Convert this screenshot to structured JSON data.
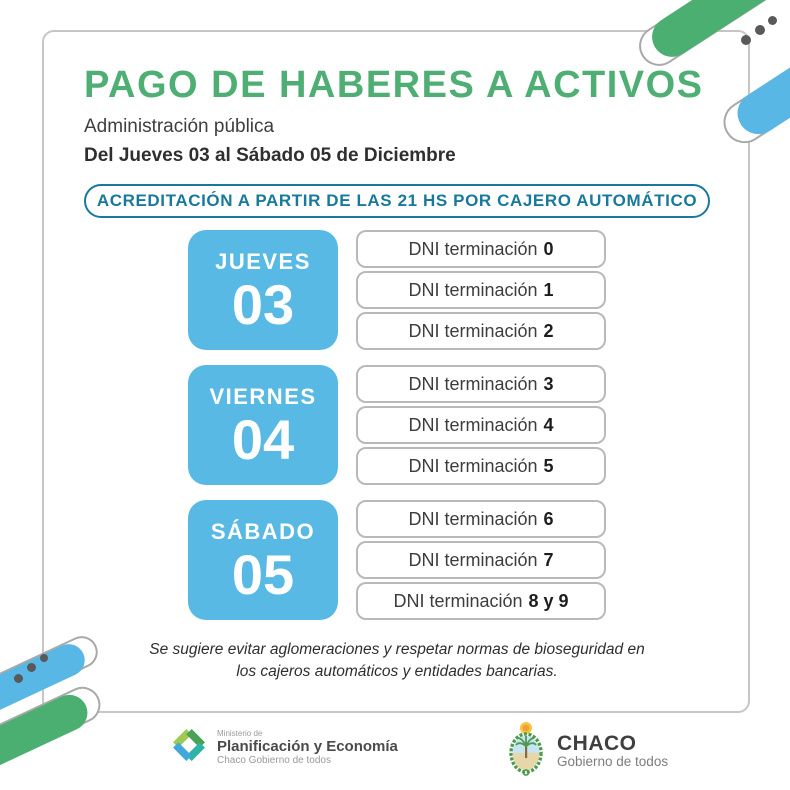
{
  "poster": {
    "title": "PAGO DE HABERES A ACTIVOS",
    "subtitle": "Administración pública",
    "date_line": "Del Jueves 03 al Sábado 05 de Diciembre",
    "banner": "ACREDITACIÓN A PARTIR DE LAS 21 HS POR CAJERO AUTOMÁTICO",
    "dni_label": "DNI terminación",
    "schedule": [
      {
        "day_name": "JUEVES",
        "day_number": "03",
        "endings": [
          "0",
          "1",
          "2"
        ]
      },
      {
        "day_name": "VIERNES",
        "day_number": "04",
        "endings": [
          "3",
          "4",
          "5"
        ]
      },
      {
        "day_name": "SÁBADO",
        "day_number": "05",
        "endings": [
          "6",
          "7",
          "8 y 9"
        ]
      }
    ],
    "note": "Se sugiere evitar aglomeraciones y respetar normas de bioseguridad en los cajeros automáticos y entidades bancarias.",
    "footer": {
      "ministry": {
        "pre": "Ministerio de",
        "name": "Planificación y Economía",
        "sub": "Chaco Gobierno de todos"
      },
      "government": {
        "name": "CHACO",
        "sub": "Gobierno de todos"
      }
    },
    "colors": {
      "title_green": "#4fae73",
      "day_tile_blue": "#59b9e5",
      "banner_teal": "#19799c",
      "decoration_green": "#4caf72",
      "decoration_blue": "#58b7e4",
      "row_border_gray": "#b9b9b9",
      "text_dark": "#3a3a3a"
    }
  }
}
